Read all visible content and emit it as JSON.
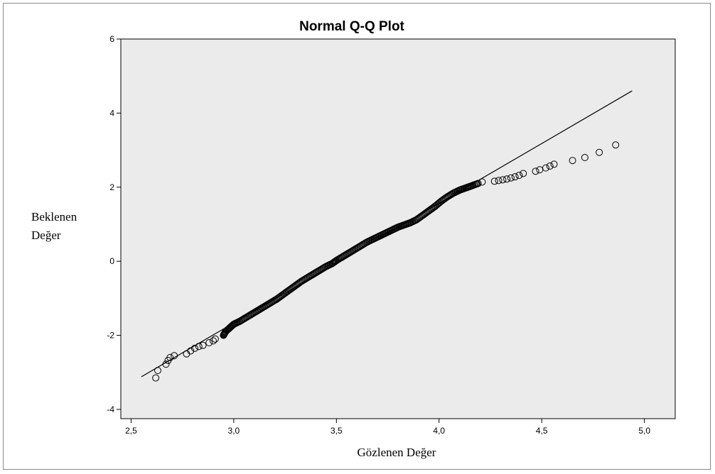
{
  "chart_data": {
    "type": "scatter",
    "title": "Normal Q-Q Plot",
    "xlabel": "Gözlenen Değer",
    "ylabel_lines": [
      "Beklenen",
      "Değer"
    ],
    "xlim": [
      2.45,
      5.15
    ],
    "ylim": [
      -4.25,
      6.0
    ],
    "x_ticks": [
      2.5,
      3.0,
      3.5,
      4.0,
      4.5,
      5.0
    ],
    "x_tick_labels": [
      "2,5",
      "3,0",
      "3,5",
      "4,0",
      "4,5",
      "5,0"
    ],
    "y_ticks": [
      -4,
      -2,
      0,
      2,
      4,
      6
    ],
    "y_tick_labels": [
      "-4",
      "-2",
      "0",
      "2",
      "4",
      "6"
    ],
    "grid": false,
    "plot_background": "#ebebeb",
    "reference_line": {
      "x": [
        2.55,
        4.94
      ],
      "y": [
        -3.12,
        4.6
      ]
    },
    "series": [
      {
        "marker": "open-circle",
        "x": [
          2.62,
          2.63,
          2.67,
          2.68,
          2.69,
          2.71,
          2.77,
          2.79,
          2.81,
          2.83,
          2.85,
          2.88,
          2.9,
          2.91,
          2.95,
          2.96,
          2.98,
          3.0,
          3.03,
          3.06,
          3.09,
          3.12,
          3.15,
          3.18,
          3.21,
          3.24,
          3.27,
          3.3,
          3.33,
          3.36,
          3.39,
          3.42,
          3.45,
          3.48,
          3.5,
          3.53,
          3.56,
          3.59,
          3.62,
          3.65,
          3.68,
          3.71,
          3.74,
          3.77,
          3.8,
          3.83,
          3.86,
          3.89,
          3.92,
          3.95,
          3.98,
          4.01,
          4.04,
          4.07,
          4.1,
          4.13,
          4.16,
          4.19,
          4.21,
          4.27,
          4.29,
          4.31,
          4.33,
          4.35,
          4.37,
          4.39,
          4.41,
          4.47,
          4.49,
          4.52,
          4.54,
          4.56,
          4.65,
          4.71,
          4.78,
          4.86
        ],
        "y": [
          -3.15,
          -2.95,
          -2.78,
          -2.68,
          -2.6,
          -2.55,
          -2.5,
          -2.42,
          -2.35,
          -2.3,
          -2.27,
          -2.2,
          -2.15,
          -2.1,
          -2.0,
          -1.9,
          -1.8,
          -1.7,
          -1.62,
          -1.52,
          -1.42,
          -1.32,
          -1.22,
          -1.12,
          -1.02,
          -0.9,
          -0.78,
          -0.66,
          -0.54,
          -0.44,
          -0.34,
          -0.24,
          -0.14,
          -0.06,
          0.02,
          0.12,
          0.22,
          0.32,
          0.42,
          0.52,
          0.6,
          0.68,
          0.76,
          0.84,
          0.92,
          0.98,
          1.04,
          1.12,
          1.24,
          1.36,
          1.48,
          1.62,
          1.74,
          1.84,
          1.92,
          1.98,
          2.04,
          2.1,
          2.14,
          2.16,
          2.18,
          2.2,
          2.22,
          2.25,
          2.28,
          2.32,
          2.37,
          2.43,
          2.47,
          2.52,
          2.57,
          2.62,
          2.72,
          2.8,
          2.94,
          3.14
        ]
      }
    ]
  }
}
